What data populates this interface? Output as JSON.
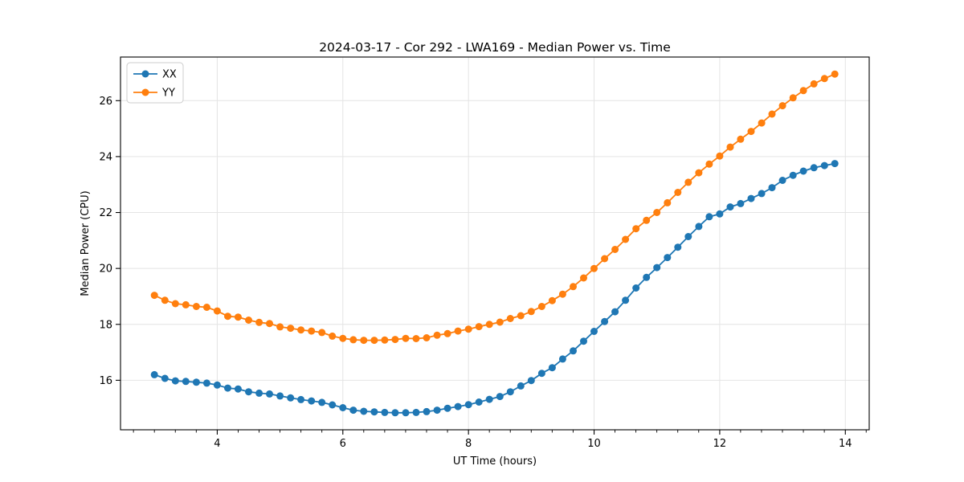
{
  "chart_data": {
    "type": "line",
    "title": "2024-03-17 - Cor 292 - LWA169 - Median Power vs. Time",
    "xlabel": "UT Time (hours)",
    "ylabel": "Median Power (CPU)",
    "xlim": [
      2.46,
      14.38
    ],
    "ylim": [
      14.23,
      27.56
    ],
    "xticks": [
      4,
      6,
      8,
      10,
      12,
      14
    ],
    "xtick_labels": [
      "4",
      "6",
      "8",
      "10",
      "12",
      "14"
    ],
    "yticks": [
      16,
      18,
      20,
      22,
      24,
      26
    ],
    "ytick_labels": [
      "16",
      "18",
      "20",
      "22",
      "24",
      "26"
    ],
    "x_minor_tick_step": 0.3333,
    "grid": true,
    "grid_color": "#e4e4e4",
    "background": "#ffffff",
    "legend": {
      "position": "upper left",
      "entries": [
        {
          "label": "XX",
          "color": "#1f77b4"
        },
        {
          "label": "YY",
          "color": "#ff7f0e"
        }
      ]
    },
    "x": [
      3.0,
      3.167,
      3.333,
      3.5,
      3.667,
      3.833,
      4.0,
      4.167,
      4.333,
      4.5,
      4.667,
      4.833,
      5.0,
      5.167,
      5.333,
      5.5,
      5.667,
      5.833,
      6.0,
      6.167,
      6.333,
      6.5,
      6.667,
      6.833,
      7.0,
      7.167,
      7.333,
      7.5,
      7.667,
      7.833,
      8.0,
      8.167,
      8.333,
      8.5,
      8.667,
      8.833,
      9.0,
      9.167,
      9.333,
      9.5,
      9.667,
      9.833,
      10.0,
      10.167,
      10.333,
      10.5,
      10.667,
      10.833,
      11.0,
      11.167,
      11.333,
      11.5,
      11.667,
      11.833,
      12.0,
      12.167,
      12.333,
      12.5,
      12.667,
      12.833,
      13.0,
      13.167,
      13.333,
      13.5,
      13.667,
      13.833
    ],
    "series": [
      {
        "name": "XX",
        "color": "#1f77b4",
        "marker": "circle",
        "values": [
          16.2,
          16.07,
          15.98,
          15.96,
          15.93,
          15.9,
          15.83,
          15.72,
          15.69,
          15.59,
          15.54,
          15.51,
          15.44,
          15.37,
          15.31,
          15.26,
          15.21,
          15.12,
          15.02,
          14.93,
          14.89,
          14.87,
          14.85,
          14.84,
          14.84,
          14.85,
          14.88,
          14.93,
          15.0,
          15.06,
          15.13,
          15.22,
          15.32,
          15.42,
          15.59,
          15.8,
          15.99,
          16.25,
          16.45,
          16.76,
          17.05,
          17.4,
          17.75,
          18.1,
          18.45,
          18.86,
          19.3,
          19.68,
          20.03,
          20.39,
          20.76,
          21.14,
          21.5,
          21.85,
          21.95,
          22.2,
          22.32,
          22.5,
          22.68,
          22.89,
          23.15,
          23.33,
          23.48,
          23.6,
          23.68,
          23.75
        ]
      },
      {
        "name": "YY",
        "color": "#ff7f0e",
        "marker": "circle",
        "values": [
          19.04,
          18.86,
          18.74,
          18.7,
          18.64,
          18.61,
          18.48,
          18.29,
          18.26,
          18.15,
          18.07,
          18.03,
          17.91,
          17.86,
          17.8,
          17.76,
          17.71,
          17.58,
          17.5,
          17.45,
          17.43,
          17.43,
          17.44,
          17.46,
          17.5,
          17.49,
          17.52,
          17.61,
          17.67,
          17.76,
          17.83,
          17.92,
          18.0,
          18.08,
          18.21,
          18.31,
          18.46,
          18.64,
          18.85,
          19.08,
          19.35,
          19.66,
          20.0,
          20.35,
          20.68,
          21.04,
          21.42,
          21.72,
          22.0,
          22.35,
          22.72,
          23.08,
          23.42,
          23.73,
          24.02,
          24.34,
          24.62,
          24.9,
          25.2,
          25.52,
          25.82,
          26.1,
          26.36,
          26.6,
          26.79,
          26.95
        ]
      }
    ]
  }
}
